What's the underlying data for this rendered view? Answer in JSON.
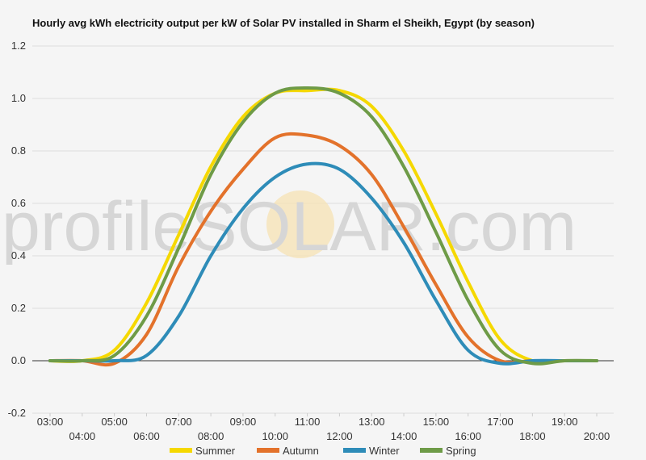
{
  "chart_data": {
    "type": "line",
    "title": "Hourly avg kWh electricity output per kW of Solar PV installed in Sharm el Sheikh, Egypt (by season)",
    "xlabel": "",
    "ylabel": "",
    "ylim": [
      -0.2,
      1.2
    ],
    "yticks": [
      "1.2",
      "1.0",
      "0.8",
      "0.6",
      "0.4",
      "0.2",
      "0.0",
      "-0.2"
    ],
    "ytick_values": [
      1.2,
      1.0,
      0.8,
      0.6,
      0.4,
      0.2,
      0.0,
      -0.2
    ],
    "categories": [
      "03:00",
      "04:00",
      "05:00",
      "06:00",
      "07:00",
      "08:00",
      "09:00",
      "10:00",
      "11:00",
      "12:00",
      "13:00",
      "14:00",
      "15:00",
      "16:00",
      "17:00",
      "18:00",
      "19:00",
      "20:00"
    ],
    "grid": true,
    "legend": "bottom",
    "watermark": "profileSOLAR.com",
    "series": [
      {
        "name": "Summer",
        "color": "#f5d800",
        "values": [
          0,
          0,
          0.04,
          0.22,
          0.48,
          0.74,
          0.93,
          1.02,
          1.03,
          1.03,
          0.97,
          0.8,
          0.56,
          0.3,
          0.08,
          0.0,
          0,
          0
        ]
      },
      {
        "name": "Autumn",
        "color": "#e3722b",
        "values": [
          0,
          0,
          -0.01,
          0.1,
          0.36,
          0.57,
          0.73,
          0.85,
          0.86,
          0.82,
          0.71,
          0.51,
          0.29,
          0.09,
          0.0,
          0,
          0,
          0
        ]
      },
      {
        "name": "Winter",
        "color": "#2e8cb8",
        "values": [
          0,
          0,
          0,
          0.02,
          0.17,
          0.4,
          0.58,
          0.7,
          0.75,
          0.73,
          0.62,
          0.45,
          0.23,
          0.04,
          -0.01,
          0,
          0,
          0
        ]
      },
      {
        "name": "Spring",
        "color": "#6e9b47",
        "values": [
          0,
          0,
          0.02,
          0.17,
          0.43,
          0.71,
          0.91,
          1.02,
          1.04,
          1.02,
          0.93,
          0.74,
          0.49,
          0.23,
          0.04,
          -0.01,
          0,
          0
        ]
      }
    ]
  }
}
